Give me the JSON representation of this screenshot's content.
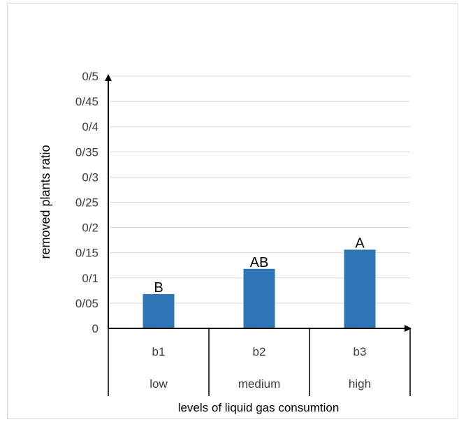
{
  "chart_data": {
    "type": "bar",
    "ylabel": "removed  plants ratio",
    "xlabel": "levels of liquid gas consumtion",
    "ylim": [
      0,
      0.5
    ],
    "y_tick_labels": [
      "0",
      "0/05",
      "0/1",
      "0/15",
      "0/2",
      "0/25",
      "0/3",
      "0/35",
      "0/4",
      "0/45",
      "0/5"
    ],
    "categories": [
      "b1",
      "b2",
      "b3"
    ],
    "category_groups": [
      "low",
      "medium",
      "high"
    ],
    "values": [
      0.068,
      0.118,
      0.156
    ],
    "data_labels": [
      "B",
      "AB",
      "A"
    ],
    "bar_color": "#2E75B6",
    "grid": true
  }
}
